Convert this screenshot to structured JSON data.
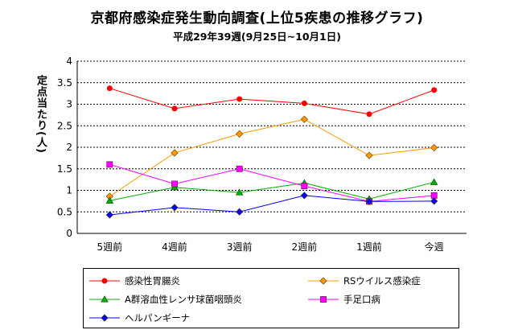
{
  "chart_data": {
    "type": "line",
    "title": "京都府感染症発生動向調査(上位5疾患の推移グラフ)",
    "subtitle": "平成29年39週(9月25日~10月1日)",
    "ylabel": "定点当たり(人)",
    "xlabel": "",
    "categories": [
      "5週前",
      "4週前",
      "3週前",
      "2週前",
      "1週前",
      "今週"
    ],
    "ylim": [
      0,
      4
    ],
    "yticks": [
      "0",
      "0.5",
      "1",
      "1.5",
      "2",
      "2.5",
      "3",
      "3.5",
      "4"
    ],
    "grid": true,
    "legend_position": "bottom",
    "series": [
      {
        "name": "感染性胃腸炎",
        "values": [
          3.37,
          2.9,
          3.12,
          3.02,
          2.77,
          3.33
        ],
        "color": "#ff0000",
        "marker": "circle"
      },
      {
        "name": "RSウイルス感染症",
        "values": [
          0.86,
          1.87,
          2.31,
          2.65,
          1.81,
          1.99
        ],
        "color": "#ff9900",
        "marker": "diamond"
      },
      {
        "name": "A群溶血性レンサ球菌咽頭炎",
        "values": [
          0.76,
          1.07,
          0.95,
          1.17,
          0.8,
          1.19
        ],
        "color": "#00b000",
        "marker": "triangle"
      },
      {
        "name": "手足口病",
        "values": [
          1.6,
          1.15,
          1.5,
          1.1,
          0.74,
          0.88
        ],
        "color": "#ff00ff",
        "marker": "square"
      },
      {
        "name": "ヘルパンギーナ",
        "values": [
          0.43,
          0.6,
          0.5,
          0.88,
          0.74,
          0.75
        ],
        "color": "#0000ff",
        "marker": "diamond"
      }
    ]
  }
}
